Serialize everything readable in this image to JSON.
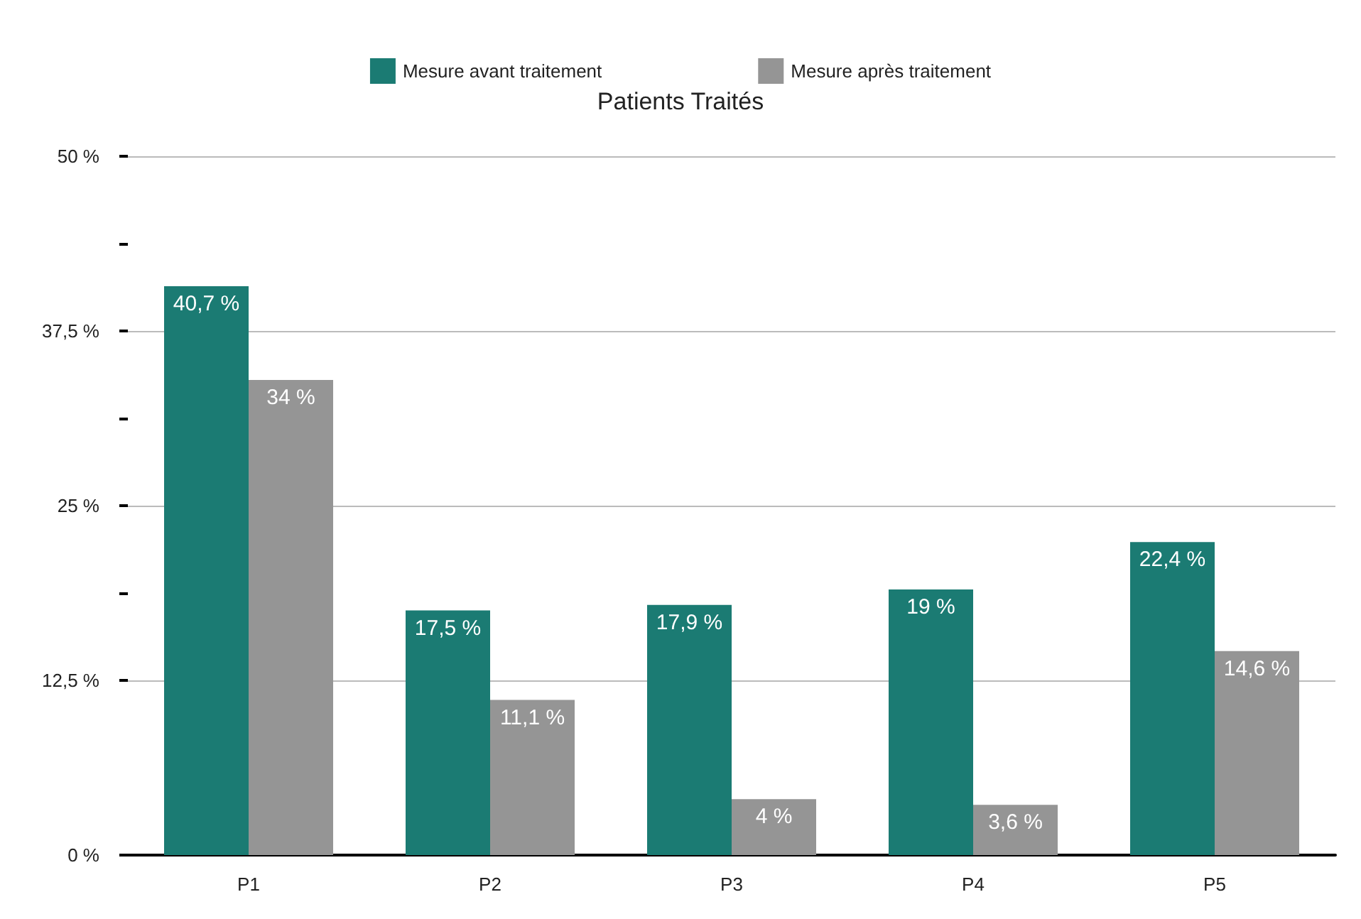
{
  "chart_data": {
    "type": "bar",
    "title": "Patients Traités",
    "categories": [
      "P1",
      "P2",
      "P3",
      "P4",
      "P5"
    ],
    "series": [
      {
        "name": "Mesure avant traitement",
        "color": "#1b7b73",
        "values": [
          40.7,
          17.5,
          17.9,
          19,
          22.4
        ],
        "value_labels": [
          "40,7 %",
          "17,5 %",
          "17,9 %",
          "19 %",
          "22,4 %"
        ]
      },
      {
        "name": "Mesure après traitement",
        "color": "#959595",
        "values": [
          34,
          11.1,
          4,
          3.6,
          14.6
        ],
        "value_labels": [
          "34 %",
          "11,1 %",
          "4 %",
          "3,6 %",
          "14,6 %"
        ]
      }
    ],
    "ylim": [
      0,
      50
    ],
    "yticks": [
      {
        "value": 0,
        "label": "0 %"
      },
      {
        "value": 12.5,
        "label": "12,5 %"
      },
      {
        "value": 18.75,
        "label": null
      },
      {
        "value": 25,
        "label": "25 %"
      },
      {
        "value": 31.25,
        "label": null
      },
      {
        "value": 37.5,
        "label": "37,5 %"
      },
      {
        "value": 43.75,
        "label": null
      },
      {
        "value": 50,
        "label": "50 %"
      }
    ],
    "grid": true,
    "legend": "top"
  }
}
